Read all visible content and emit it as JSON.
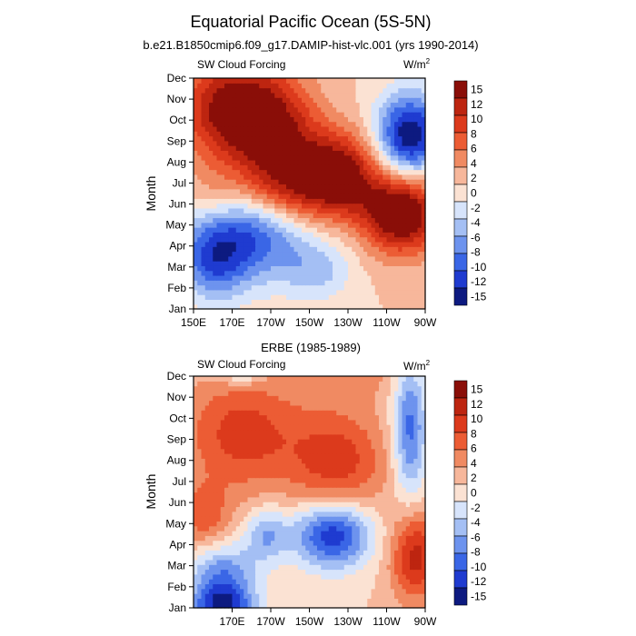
{
  "figure": {
    "title": "Equatorial Pacific Ocean (5S-5N)"
  },
  "palette": {
    "colors": [
      "#0d1a80",
      "#1f3bd0",
      "#3a66e6",
      "#6d93ee",
      "#a4bff4",
      "#d7e4fb",
      "#fbe2d3",
      "#f7b79b",
      "#f08a62",
      "#ec5c34",
      "#dc3a1c",
      "#bd2510",
      "#8a0e08"
    ],
    "levels": [
      -15,
      -12,
      -10,
      -8,
      -6,
      -4,
      -2,
      0,
      2,
      4,
      6,
      8,
      10,
      12,
      15
    ]
  },
  "colorbar": {
    "labels": [
      "15",
      "12",
      "10",
      "8",
      "6",
      "4",
      "2",
      "0",
      "-2",
      "-4",
      "-6",
      "-8",
      "-10",
      "-12",
      "-15"
    ]
  },
  "chart_data": [
    {
      "type": "heatmap",
      "title": "b.e21.B1850cmip6.f09_g17.DAMIP-hist-vlc.001 (yrs 1990-2014)",
      "left_label": "SW Cloud Forcing",
      "units_label": "W/m",
      "units_superscript": "2",
      "ylabel": "Month",
      "xlabel": "",
      "x_ticks": [
        "150E",
        "170E",
        "170W",
        "150W",
        "130W",
        "110W",
        "90W"
      ],
      "y_ticks": [
        "Jan",
        "Feb",
        "Mar",
        "Apr",
        "May",
        "Jun",
        "Jul",
        "Aug",
        "Sep",
        "Oct",
        "Nov",
        "Dec"
      ],
      "x_range": [
        150,
        270
      ],
      "units": "W/m2",
      "blobs": [
        {
          "lon": 180,
          "mon": 3.8,
          "amp": -11,
          "slon": 22,
          "smon": 1.7
        },
        {
          "lon": 160,
          "mon": 2.2,
          "amp": -7,
          "slon": 12,
          "smon": 1.3
        },
        {
          "lon": 205,
          "mon": 5.5,
          "amp": 8,
          "slon": 30,
          "smon": 1.2
        },
        {
          "lon": 170,
          "mon": 9.5,
          "amp": 12,
          "slon": 18,
          "smon": 1.8
        },
        {
          "lon": 195,
          "mon": 8.0,
          "amp": 9,
          "slon": 15,
          "smon": 2.0
        },
        {
          "lon": 225,
          "mon": 6.8,
          "amp": 9,
          "slon": 14,
          "smon": 1.3
        },
        {
          "lon": 258,
          "mon": 4.5,
          "amp": 13,
          "slon": 14,
          "smon": 1.3
        },
        {
          "lon": 262,
          "mon": 8.3,
          "amp": -14,
          "slon": 12,
          "smon": 1.4
        },
        {
          "lon": 215,
          "mon": 1.8,
          "amp": -4,
          "slon": 12,
          "smon": 1.0
        },
        {
          "lon": 160,
          "mon": 5.2,
          "amp": 2,
          "slon": 10,
          "smon": 1.0
        }
      ]
    },
    {
      "type": "heatmap",
      "title": "ERBE (1985-1989)",
      "left_label": "SW Cloud Forcing",
      "units_label": "W/m",
      "units_superscript": "2",
      "ylabel": "Month",
      "xlabel": "",
      "x_ticks": [
        "170E",
        "170W",
        "150W",
        "130W",
        "110W",
        "90W"
      ],
      "y_ticks": [
        "Jan",
        "Feb",
        "Mar",
        "Apr",
        "May",
        "Jun",
        "Jul",
        "Aug",
        "Sep",
        "Oct",
        "Nov",
        "Dec"
      ],
      "x_range": [
        150,
        270
      ],
      "units": "W/m2",
      "blobs": [
        {
          "lon": 222,
          "mon": 3.5,
          "amp": -12,
          "slon": 14,
          "smon": 1.1
        },
        {
          "lon": 188,
          "mon": 3.5,
          "amp": -6,
          "slon": 8,
          "smon": 0.9
        },
        {
          "lon": 165,
          "mon": 1.5,
          "amp": -8,
          "slon": 12,
          "smon": 1.1
        },
        {
          "lon": 165,
          "mon": 0.0,
          "amp": -10,
          "slon": 12,
          "smon": 0.7
        },
        {
          "lon": 175,
          "mon": 11.8,
          "amp": -12,
          "slon": 8,
          "smon": 0.6
        },
        {
          "lon": 262,
          "mon": 8.5,
          "amp": -9,
          "slon": 6,
          "smon": 2.3
        },
        {
          "lon": 175,
          "mon": 8.3,
          "amp": 7,
          "slon": 22,
          "smon": 2.0
        },
        {
          "lon": 225,
          "mon": 7.0,
          "amp": 7,
          "slon": 18,
          "smon": 1.8
        },
        {
          "lon": 265,
          "mon": 2.5,
          "amp": 9,
          "slon": 9,
          "smon": 1.5
        },
        {
          "lon": 155,
          "mon": 4.3,
          "amp": 5,
          "slon": 10,
          "smon": 1.1
        },
        {
          "lon": 230,
          "mon": 11.3,
          "amp": 3,
          "slon": 20,
          "smon": 1.0
        }
      ]
    }
  ]
}
